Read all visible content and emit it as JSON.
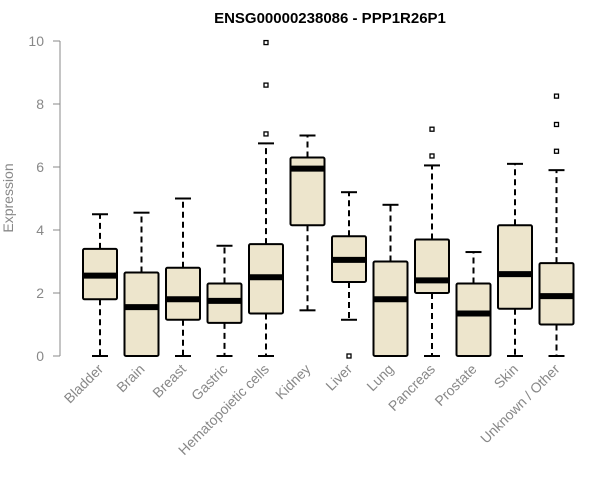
{
  "chart_data": {
    "type": "boxplot",
    "title": "ENSG00000238086 - PPP1R26P1",
    "ylabel": "Expression",
    "xlabel": "",
    "ylim": [
      0,
      10
    ],
    "yticks": [
      "0",
      "2",
      "4",
      "6",
      "8",
      "10"
    ],
    "box_fill": "#ede5cc",
    "categories": [
      "Bladder",
      "Brain",
      "Breast",
      "Gastric",
      "Hematopoietic cells",
      "Kidney",
      "Liver",
      "Lung",
      "Pancreas",
      "Prostate",
      "Skin",
      "Unknown / Other"
    ],
    "boxes": [
      {
        "min": 0,
        "q1": 1.8,
        "median": 2.55,
        "q3": 3.4,
        "max": 4.5,
        "outliers": []
      },
      {
        "min": 0,
        "q1": 0,
        "median": 1.55,
        "q3": 2.65,
        "max": 4.55,
        "outliers": []
      },
      {
        "min": 0,
        "q1": 1.15,
        "median": 1.8,
        "q3": 2.8,
        "max": 5.0,
        "outliers": []
      },
      {
        "min": 0,
        "q1": 1.05,
        "median": 1.75,
        "q3": 2.3,
        "max": 3.5,
        "outliers": []
      },
      {
        "min": 0,
        "q1": 1.35,
        "median": 2.5,
        "q3": 3.55,
        "max": 6.75,
        "outliers": [
          7.05,
          8.6,
          9.95
        ]
      },
      {
        "min": 1.45,
        "q1": 4.15,
        "median": 5.95,
        "q3": 6.3,
        "max": 7.0,
        "outliers": []
      },
      {
        "min": 1.15,
        "q1": 2.35,
        "median": 3.05,
        "q3": 3.8,
        "max": 5.2,
        "outliers": [
          0
        ]
      },
      {
        "min": 0,
        "q1": 0,
        "median": 1.8,
        "q3": 3.0,
        "max": 4.8,
        "outliers": []
      },
      {
        "min": 0,
        "q1": 2.0,
        "median": 2.4,
        "q3": 3.7,
        "max": 6.05,
        "outliers": [
          6.35,
          7.2
        ]
      },
      {
        "min": 0,
        "q1": 0,
        "median": 1.35,
        "q3": 2.3,
        "max": 3.3,
        "outliers": []
      },
      {
        "min": 0,
        "q1": 1.5,
        "median": 2.6,
        "q3": 4.15,
        "max": 6.1,
        "outliers": []
      },
      {
        "min": 0,
        "q1": 1.0,
        "median": 1.9,
        "q3": 2.95,
        "max": 5.9,
        "outliers": [
          6.5,
          7.35,
          8.25
        ]
      }
    ]
  }
}
